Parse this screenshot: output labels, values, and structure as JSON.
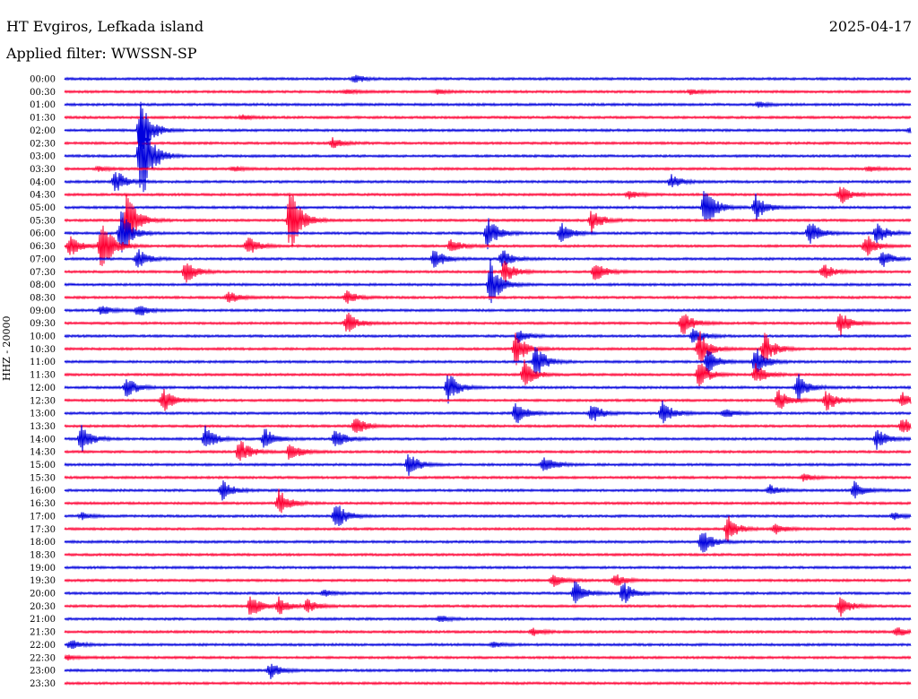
{
  "header": {
    "station": "HT Evgiros, Lefkada island",
    "filter": "Applied filter: WWSSN-SP",
    "date": "2025-04-17",
    "channel_label": "HHZ - 20000"
  },
  "colors": {
    "even_trace": "#0000dd",
    "odd_trace": "#ff0033",
    "text": "#000000"
  },
  "chart_data": {
    "type": "line",
    "title": "HT Evgiros, Lefkada island",
    "subtitle": "Applied filter: WWSSN-SP",
    "ylabel": "HHZ - 20000",
    "xlabel": "",
    "y_tick_labels": [
      "00:00",
      "00:30",
      "01:00",
      "01:30",
      "02:00",
      "02:30",
      "03:00",
      "03:30",
      "04:00",
      "04:30",
      "05:00",
      "05:30",
      "06:00",
      "06:30",
      "07:00",
      "07:30",
      "08:00",
      "08:30",
      "09:00",
      "09:30",
      "10:00",
      "10:30",
      "11:00",
      "11:30",
      "12:00",
      "12:30",
      "13:00",
      "13:30",
      "14:00",
      "14:30",
      "15:00",
      "15:30",
      "16:00",
      "16:30",
      "17:00",
      "17:30",
      "18:00",
      "18:30",
      "19:00",
      "19:30",
      "20:00",
      "20:30",
      "21:00",
      "21:30",
      "22:00",
      "22:30",
      "23:00",
      "23:30"
    ],
    "x_range_minutes": [
      0,
      30
    ],
    "legend": "none",
    "grid": false,
    "series_colors": [
      "#0000dd",
      "#ff0033"
    ],
    "events": [
      {
        "row": 0,
        "t": 10.3,
        "amp": 5
      },
      {
        "row": 1,
        "t": 10.0,
        "amp": 3
      },
      {
        "row": 1,
        "t": 13.2,
        "amp": 3
      },
      {
        "row": 1,
        "t": 22.2,
        "amp": 3
      },
      {
        "row": 2,
        "t": 24.6,
        "amp": 3
      },
      {
        "row": 3,
        "t": 6.3,
        "amp": 3
      },
      {
        "row": 4,
        "t": 30.0,
        "amp": 4
      },
      {
        "row": 4,
        "t": 2.7,
        "amp": 40
      },
      {
        "row": 5,
        "t": 9.5,
        "amp": 6
      },
      {
        "row": 6,
        "t": 2.7,
        "amp": 70
      },
      {
        "row": 7,
        "t": 1.2,
        "amp": 3
      },
      {
        "row": 7,
        "t": 6.0,
        "amp": 3
      },
      {
        "row": 7,
        "t": 28.5,
        "amp": 3
      },
      {
        "row": 8,
        "t": 1.8,
        "amp": 15
      },
      {
        "row": 8,
        "t": 21.5,
        "amp": 8
      },
      {
        "row": 9,
        "t": 20.0,
        "amp": 5
      },
      {
        "row": 9,
        "t": 27.5,
        "amp": 12
      },
      {
        "row": 10,
        "t": 22.7,
        "amp": 28
      },
      {
        "row": 10,
        "t": 24.5,
        "amp": 18
      },
      {
        "row": 11,
        "t": 2.2,
        "amp": 40
      },
      {
        "row": 11,
        "t": 8.0,
        "amp": 45
      },
      {
        "row": 11,
        "t": 18.7,
        "amp": 14
      },
      {
        "row": 12,
        "t": 2.0,
        "amp": 28
      },
      {
        "row": 12,
        "t": 15.0,
        "amp": 20
      },
      {
        "row": 12,
        "t": 17.6,
        "amp": 14
      },
      {
        "row": 12,
        "t": 26.4,
        "amp": 16
      },
      {
        "row": 12,
        "t": 28.8,
        "amp": 14
      },
      {
        "row": 13,
        "t": 0.2,
        "amp": 14
      },
      {
        "row": 13,
        "t": 1.3,
        "amp": 40
      },
      {
        "row": 13,
        "t": 6.5,
        "amp": 12
      },
      {
        "row": 13,
        "t": 13.7,
        "amp": 10
      },
      {
        "row": 13,
        "t": 28.4,
        "amp": 14
      },
      {
        "row": 14,
        "t": 2.6,
        "amp": 12
      },
      {
        "row": 14,
        "t": 13.1,
        "amp": 12
      },
      {
        "row": 14,
        "t": 15.5,
        "amp": 12
      },
      {
        "row": 14,
        "t": 29.0,
        "amp": 10
      },
      {
        "row": 15,
        "t": 4.3,
        "amp": 14
      },
      {
        "row": 15,
        "t": 15.6,
        "amp": 14
      },
      {
        "row": 15,
        "t": 18.8,
        "amp": 12
      },
      {
        "row": 15,
        "t": 26.9,
        "amp": 10
      },
      {
        "row": 16,
        "t": 15.1,
        "amp": 28
      },
      {
        "row": 17,
        "t": 5.8,
        "amp": 8
      },
      {
        "row": 17,
        "t": 10.0,
        "amp": 8
      },
      {
        "row": 18,
        "t": 1.3,
        "amp": 6
      },
      {
        "row": 18,
        "t": 2.6,
        "amp": 8
      },
      {
        "row": 19,
        "t": 10.0,
        "amp": 14
      },
      {
        "row": 19,
        "t": 21.9,
        "amp": 16
      },
      {
        "row": 19,
        "t": 27.5,
        "amp": 14
      },
      {
        "row": 20,
        "t": 16.1,
        "amp": 8
      },
      {
        "row": 20,
        "t": 22.3,
        "amp": 10
      },
      {
        "row": 21,
        "t": 16.0,
        "amp": 20
      },
      {
        "row": 21,
        "t": 22.5,
        "amp": 22
      },
      {
        "row": 21,
        "t": 24.8,
        "amp": 20
      },
      {
        "row": 22,
        "t": 16.7,
        "amp": 20
      },
      {
        "row": 22,
        "t": 22.8,
        "amp": 14
      },
      {
        "row": 22,
        "t": 24.5,
        "amp": 18
      },
      {
        "row": 23,
        "t": 16.3,
        "amp": 16
      },
      {
        "row": 23,
        "t": 22.5,
        "amp": 16
      },
      {
        "row": 23,
        "t": 24.5,
        "amp": 12
      },
      {
        "row": 24,
        "t": 2.2,
        "amp": 12
      },
      {
        "row": 24,
        "t": 13.6,
        "amp": 18
      },
      {
        "row": 24,
        "t": 26.0,
        "amp": 16
      },
      {
        "row": 25,
        "t": 3.5,
        "amp": 14
      },
      {
        "row": 25,
        "t": 25.3,
        "amp": 14
      },
      {
        "row": 25,
        "t": 27.0,
        "amp": 14
      },
      {
        "row": 25,
        "t": 29.7,
        "amp": 10
      },
      {
        "row": 26,
        "t": 16.0,
        "amp": 14
      },
      {
        "row": 26,
        "t": 18.7,
        "amp": 12
      },
      {
        "row": 26,
        "t": 21.2,
        "amp": 16
      },
      {
        "row": 26,
        "t": 23.4,
        "amp": 6
      },
      {
        "row": 27,
        "t": 10.3,
        "amp": 12
      },
      {
        "row": 27,
        "t": 29.7,
        "amp": 10
      },
      {
        "row": 28,
        "t": 0.6,
        "amp": 16
      },
      {
        "row": 28,
        "t": 5.0,
        "amp": 16
      },
      {
        "row": 28,
        "t": 7.1,
        "amp": 14
      },
      {
        "row": 28,
        "t": 9.6,
        "amp": 12
      },
      {
        "row": 28,
        "t": 28.8,
        "amp": 12
      },
      {
        "row": 29,
        "t": 6.2,
        "amp": 16
      },
      {
        "row": 29,
        "t": 8.0,
        "amp": 12
      },
      {
        "row": 30,
        "t": 12.2,
        "amp": 14
      },
      {
        "row": 30,
        "t": 17.0,
        "amp": 12
      },
      {
        "row": 31,
        "t": 26.2,
        "amp": 4
      },
      {
        "row": 32,
        "t": 5.6,
        "amp": 12
      },
      {
        "row": 32,
        "t": 25.0,
        "amp": 6
      },
      {
        "row": 32,
        "t": 28.0,
        "amp": 12
      },
      {
        "row": 33,
        "t": 7.6,
        "amp": 16
      },
      {
        "row": 34,
        "t": 0.6,
        "amp": 4
      },
      {
        "row": 34,
        "t": 9.6,
        "amp": 18
      },
      {
        "row": 34,
        "t": 29.4,
        "amp": 4
      },
      {
        "row": 35,
        "t": 23.5,
        "amp": 16
      },
      {
        "row": 35,
        "t": 25.2,
        "amp": 6
      },
      {
        "row": 36,
        "t": 22.6,
        "amp": 16
      },
      {
        "row": 39,
        "t": 17.3,
        "amp": 8
      },
      {
        "row": 39,
        "t": 19.5,
        "amp": 8
      },
      {
        "row": 40,
        "t": 18.1,
        "amp": 14
      },
      {
        "row": 40,
        "t": 19.8,
        "amp": 14
      },
      {
        "row": 40,
        "t": 9.2,
        "amp": 4
      },
      {
        "row": 41,
        "t": 6.6,
        "amp": 14
      },
      {
        "row": 41,
        "t": 7.6,
        "amp": 10
      },
      {
        "row": 41,
        "t": 8.6,
        "amp": 8
      },
      {
        "row": 41,
        "t": 27.5,
        "amp": 12
      },
      {
        "row": 42,
        "t": 13.3,
        "amp": 4
      },
      {
        "row": 43,
        "t": 16.6,
        "amp": 4
      },
      {
        "row": 43,
        "t": 29.5,
        "amp": 6
      },
      {
        "row": 44,
        "t": 0.2,
        "amp": 6
      },
      {
        "row": 44,
        "t": 15.2,
        "amp": 3
      },
      {
        "row": 45,
        "t": 0.1,
        "amp": 3
      },
      {
        "row": 46,
        "t": 7.3,
        "amp": 10
      }
    ]
  }
}
